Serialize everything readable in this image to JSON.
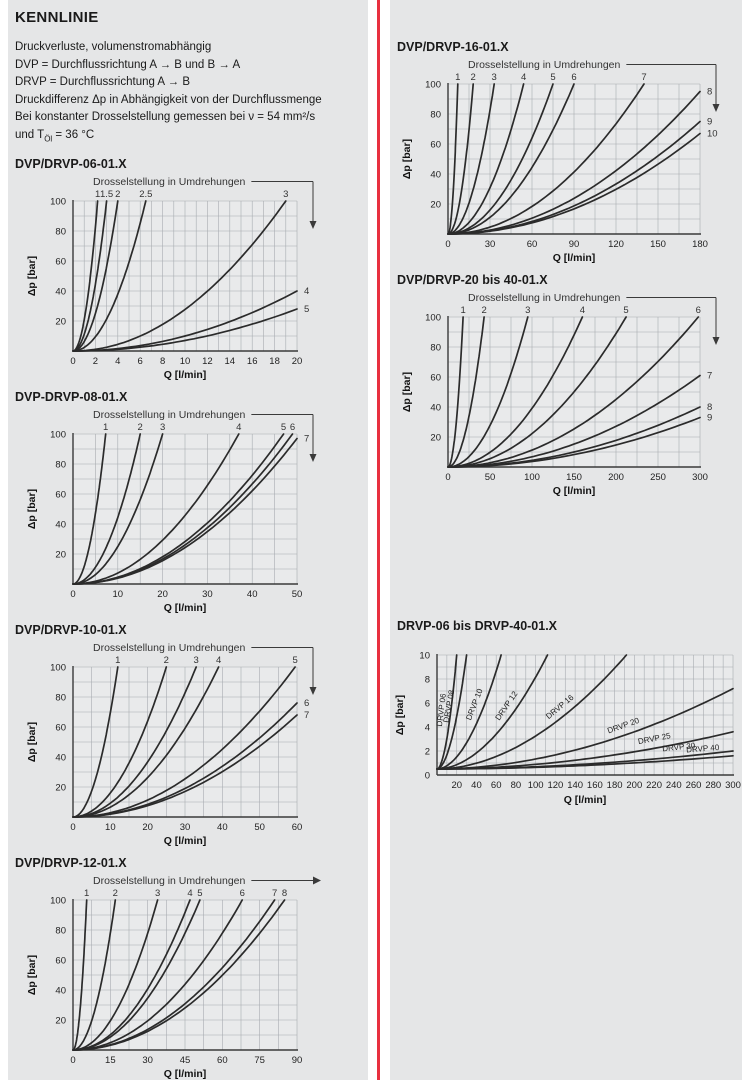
{
  "header": {
    "title": "KENNLINIE",
    "lines": [
      "Druckverluste, volumenstromabhängig",
      "DVP = Durchflussrichtung A → B und B → A",
      "DRVP = Durchflussrichtung A → B",
      "Druckdifferenz Δp in Abhängigkeit von der Durchflussmenge",
      "Bei konstanter Drosselstellung gemessen bei ν = 54 mm²/s"
    ],
    "temp_line": {
      "pre": "und T",
      "sub": "Öl",
      "post": " = 36 °C"
    }
  },
  "colors": {
    "divider": "#e8303f",
    "panel": "#e5e6e7",
    "plot_bg": "#e9eaeb",
    "grid": "#a7acb0",
    "axis": "#3a3a3a",
    "curve": "#2b2b2b"
  },
  "chart_data": [
    {
      "id": "dvp-drvp-06",
      "type": "line",
      "title": "DVP/DRVP-06-01.X",
      "annotation": "Drosselstellung in Umdrehungen",
      "annotation_arrow": "down",
      "xlabel": "Q [l/min]",
      "ylabel": "Δp [bar]",
      "xlim": [
        0,
        20
      ],
      "ylim": [
        0,
        100
      ],
      "xticks": [
        0,
        2,
        4,
        6,
        8,
        10,
        12,
        14,
        16,
        18,
        20
      ],
      "yticks": [
        20,
        40,
        60,
        80,
        100
      ],
      "x_minor_step": 1,
      "y_minor_step": 10,
      "grid": true,
      "power": 2,
      "curve_labels": "edge",
      "curves": [
        {
          "label": "1",
          "end": [
            2.2,
            100
          ]
        },
        {
          "label": "1.5",
          "end": [
            3.0,
            100
          ]
        },
        {
          "label": "2",
          "end": [
            4.0,
            100
          ]
        },
        {
          "label": "2.5",
          "end": [
            6.5,
            100
          ]
        },
        {
          "label": "3",
          "end": [
            19,
            100
          ]
        },
        {
          "label": "4",
          "end": [
            20,
            40
          ]
        },
        {
          "label": "5",
          "end": [
            20,
            28
          ]
        }
      ]
    },
    {
      "id": "dvp-drvp-08",
      "type": "line",
      "title": "DVP-DRVP-08-01.X",
      "annotation": "Drosselstellung in Umdrehungen",
      "annotation_arrow": "down",
      "xlabel": "Q [l/min]",
      "ylabel": "Δp [bar]",
      "xlim": [
        0,
        50
      ],
      "ylim": [
        0,
        100
      ],
      "xticks": [
        0,
        10,
        20,
        30,
        40,
        50
      ],
      "yticks": [
        20,
        40,
        60,
        80,
        100
      ],
      "x_minor_step": 5,
      "y_minor_step": 10,
      "grid": true,
      "power": 2,
      "curve_labels": "edge",
      "curves": [
        {
          "label": "1",
          "end": [
            7.3,
            100
          ]
        },
        {
          "label": "2",
          "end": [
            15,
            100
          ]
        },
        {
          "label": "3",
          "end": [
            20,
            100
          ]
        },
        {
          "label": "4",
          "end": [
            37,
            100
          ]
        },
        {
          "label": "5",
          "end": [
            47,
            100
          ]
        },
        {
          "label": "6",
          "end": [
            49,
            100
          ]
        },
        {
          "label": "7",
          "end": [
            50,
            97
          ]
        }
      ]
    },
    {
      "id": "dvp-drvp-10",
      "type": "line",
      "title": "DVP/DRVP-10-01.X",
      "annotation": "Drosselstellung in Umdrehungen",
      "annotation_arrow": "down",
      "xlabel": "Q [l/min]",
      "ylabel": "Δp [bar]",
      "xlim": [
        0,
        60
      ],
      "ylim": [
        0,
        100
      ],
      "xticks": [
        0,
        10,
        20,
        30,
        40,
        50,
        60
      ],
      "yticks": [
        20,
        40,
        60,
        80,
        100
      ],
      "x_minor_step": 5,
      "y_minor_step": 10,
      "grid": true,
      "power": 2,
      "curve_labels": "edge",
      "curves": [
        {
          "label": "1",
          "end": [
            12,
            100
          ]
        },
        {
          "label": "2",
          "end": [
            25,
            100
          ]
        },
        {
          "label": "3",
          "end": [
            33,
            100
          ]
        },
        {
          "label": "4",
          "end": [
            39,
            100
          ]
        },
        {
          "label": "5",
          "end": [
            59.5,
            100
          ]
        },
        {
          "label": "6",
          "end": [
            60,
            76
          ]
        },
        {
          "label": "7",
          "end": [
            60,
            68
          ]
        }
      ]
    },
    {
      "id": "dvp-drvp-12",
      "type": "line",
      "title": "DVP/DRVP-12-01.X",
      "annotation": "Drosselstellung in Umdrehungen",
      "annotation_arrow": "right",
      "xlabel": "Q [l/min]",
      "ylabel": "Δp [bar]",
      "xlim": [
        0,
        90
      ],
      "ylim": [
        0,
        100
      ],
      "xticks": [
        0,
        15,
        30,
        45,
        60,
        75,
        90
      ],
      "yticks": [
        20,
        40,
        60,
        80,
        100
      ],
      "x_minor_step": 7.5,
      "y_minor_step": 10,
      "grid": true,
      "power": 2,
      "curve_labels": "edge",
      "curves": [
        {
          "label": "1",
          "end": [
            5.5,
            100
          ]
        },
        {
          "label": "2",
          "end": [
            17,
            100
          ]
        },
        {
          "label": "3",
          "end": [
            34,
            100
          ]
        },
        {
          "label": "4",
          "end": [
            47,
            100
          ]
        },
        {
          "label": "5",
          "end": [
            51,
            100
          ]
        },
        {
          "label": "6",
          "end": [
            68,
            100
          ]
        },
        {
          "label": "7",
          "end": [
            81,
            100
          ]
        },
        {
          "label": "8",
          "end": [
            85,
            100
          ]
        }
      ]
    },
    {
      "id": "dvp-drvp-16",
      "type": "line",
      "title": "DVP/DRVP-16-01.X",
      "annotation": "Drosselstellung in Umdrehungen",
      "annotation_arrow": "down",
      "xlabel": "Q [l/min]",
      "ylabel": "Δp [bar]",
      "xlim": [
        0,
        180
      ],
      "ylim": [
        0,
        100
      ],
      "xticks": [
        0,
        30,
        60,
        90,
        120,
        150,
        180
      ],
      "yticks": [
        20,
        40,
        60,
        80,
        100
      ],
      "x_minor_step": 15,
      "y_minor_step": 10,
      "grid": true,
      "power": 2,
      "curve_labels": "edge",
      "curves": [
        {
          "label": "1",
          "end": [
            7,
            100
          ]
        },
        {
          "label": "2",
          "end": [
            18,
            100
          ]
        },
        {
          "label": "3",
          "end": [
            33,
            100
          ]
        },
        {
          "label": "4",
          "end": [
            54,
            100
          ]
        },
        {
          "label": "5",
          "end": [
            75,
            100
          ]
        },
        {
          "label": "6",
          "end": [
            90,
            100
          ]
        },
        {
          "label": "7",
          "end": [
            140,
            100
          ]
        },
        {
          "label": "8",
          "end": [
            180,
            95
          ]
        },
        {
          "label": "9",
          "end": [
            180,
            75
          ]
        },
        {
          "label": "10",
          "end": [
            180,
            67
          ]
        }
      ]
    },
    {
      "id": "dvp-drvp-20-40",
      "type": "line",
      "title": "DVP/DRVP-20 bis 40-01.X",
      "annotation": "Drosselstellung in Umdrehungen",
      "annotation_arrow": "down",
      "xlabel": "Q [l/min]",
      "ylabel": "Δp [bar]",
      "xlim": [
        0,
        300
      ],
      "ylim": [
        0,
        100
      ],
      "xticks": [
        0,
        50,
        100,
        150,
        200,
        250,
        300
      ],
      "yticks": [
        20,
        40,
        60,
        80,
        100
      ],
      "x_minor_step": 25,
      "y_minor_step": 10,
      "grid": true,
      "power": 2,
      "curve_labels": "edge",
      "curves": [
        {
          "label": "1",
          "end": [
            18,
            100
          ]
        },
        {
          "label": "2",
          "end": [
            43,
            100
          ]
        },
        {
          "label": "3",
          "end": [
            95,
            100
          ]
        },
        {
          "label": "4",
          "end": [
            160,
            100
          ]
        },
        {
          "label": "5",
          "end": [
            212,
            100
          ]
        },
        {
          "label": "6",
          "end": [
            298,
            100
          ]
        },
        {
          "label": "7",
          "end": [
            300,
            61
          ]
        },
        {
          "label": "8",
          "end": [
            300,
            40
          ]
        },
        {
          "label": "9",
          "end": [
            300,
            33
          ]
        }
      ]
    },
    {
      "id": "drvp-06-bis-40",
      "type": "line",
      "title": "DRVP-06 bis DRVP-40-01.X",
      "annotation": null,
      "annotation_arrow": null,
      "xlabel": "Q [l/min]",
      "ylabel": "Δp [bar]",
      "xlim": [
        0,
        300
      ],
      "ylim": [
        0,
        10
      ],
      "xticks": [
        20,
        40,
        60,
        80,
        100,
        120,
        140,
        160,
        180,
        200,
        220,
        240,
        260,
        280,
        300
      ],
      "yticks": [
        0,
        2,
        4,
        6,
        8,
        10
      ],
      "x_minor_step": 10,
      "y_minor_step": 1,
      "grid": true,
      "power": 1.9,
      "y0": 0.5,
      "curve_labels": "inline",
      "curves": [
        {
          "label": "DRVP 06",
          "end": [
            20,
            10
          ],
          "label_frac": 0.7
        },
        {
          "label": "DRVP 08",
          "end": [
            30,
            10
          ],
          "label_frac": 0.72
        },
        {
          "label": "DRVP 10",
          "end": [
            65,
            10
          ],
          "label_frac": 0.72
        },
        {
          "label": "DRVP 12",
          "end": [
            112,
            10
          ],
          "label_frac": 0.7
        },
        {
          "label": "DRVP 16",
          "end": [
            192,
            10
          ],
          "label_frac": 0.68
        },
        {
          "label": "DRVP 20",
          "end": [
            300,
            7.2
          ],
          "label_frac": 0.64
        },
        {
          "label": "DRVP 25",
          "end": [
            300,
            3.6
          ],
          "label_frac": 0.74
        },
        {
          "label": "DRVP 30",
          "end": [
            300,
            2.0
          ],
          "label_frac": 0.82
        },
        {
          "label": "DRVP 40",
          "end": [
            300,
            1.6
          ],
          "label_frac": 0.9
        }
      ]
    }
  ]
}
